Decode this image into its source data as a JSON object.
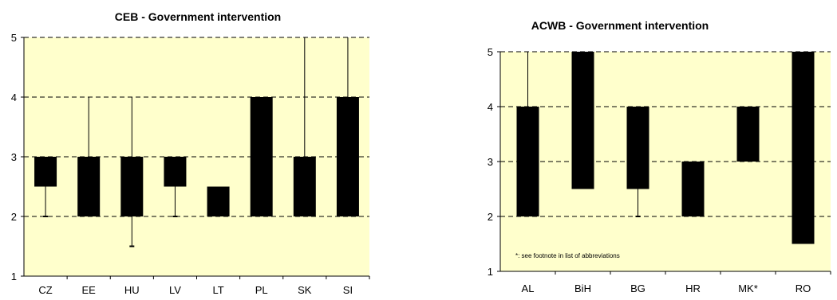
{
  "chart_data": [
    {
      "type": "box",
      "title": "CEB - Government intervention",
      "xlabel": "",
      "ylabel": "",
      "ylim": [
        1,
        5
      ],
      "yticks": [
        1,
        2,
        3,
        4,
        5
      ],
      "grid": true,
      "background_color": "#ffffcc",
      "box_color": "#000000",
      "categories": [
        "CZ",
        "EE",
        "HU",
        "LV",
        "LT",
        "PL",
        "SK",
        "SI"
      ],
      "boxes": [
        {
          "min": 2,
          "q1": 2.5,
          "q3": 3,
          "max": 3
        },
        {
          "min": 2,
          "q1": 2,
          "q3": 3,
          "max": 4
        },
        {
          "min": 1.5,
          "q1": 2,
          "q3": 3,
          "max": 4
        },
        {
          "min": 2,
          "q1": 2.5,
          "q3": 3,
          "max": 3
        },
        {
          "min": 2,
          "q1": 2,
          "q3": 2.5,
          "max": 2.5
        },
        {
          "min": 2,
          "q1": 2,
          "q3": 4,
          "max": 4
        },
        {
          "min": 2,
          "q1": 2,
          "q3": 3,
          "max": 5
        },
        {
          "min": 2,
          "q1": 2,
          "q3": 4,
          "max": 5
        }
      ]
    },
    {
      "type": "box",
      "title": "ACWB - Government intervention",
      "xlabel": "",
      "ylabel": "",
      "ylim": [
        1,
        5
      ],
      "yticks": [
        1,
        2,
        3,
        4,
        5
      ],
      "grid": true,
      "background_color": "#ffffcc",
      "box_color": "#000000",
      "categories": [
        "AL",
        "BiH",
        "BG",
        "HR",
        "MK*",
        "RO"
      ],
      "boxes": [
        {
          "min": 2,
          "q1": 2,
          "q3": 4,
          "max": 5
        },
        {
          "min": 2.5,
          "q1": 2.5,
          "q3": 5,
          "max": 5
        },
        {
          "min": 2,
          "q1": 2.5,
          "q3": 4,
          "max": 4
        },
        {
          "min": 2,
          "q1": 2,
          "q3": 3,
          "max": 3
        },
        {
          "min": 3,
          "q1": 3,
          "q3": 4,
          "max": 4
        },
        {
          "min": 1.5,
          "q1": 1.5,
          "q3": 5,
          "max": 5
        }
      ],
      "footnote": "*: see footnote in list of abbreviations"
    }
  ]
}
